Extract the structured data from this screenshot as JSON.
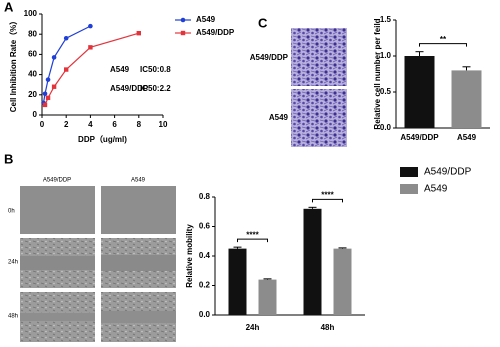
{
  "chart_data": [
    {
      "type": "line",
      "panel": "A",
      "xlabel": "DDP（ug/ml)",
      "ylabel": "Cell Inhibition Rate（%）",
      "xlim": [
        0,
        10
      ],
      "xticks": [
        0,
        2,
        4,
        6,
        8,
        10
      ],
      "ylim": [
        0,
        100
      ],
      "yticks": [
        0,
        20,
        40,
        60,
        80,
        100
      ],
      "series": [
        {
          "name": "A549",
          "color": "#1f3fd6",
          "marker": "circle",
          "x": [
            0.125,
            0.25,
            0.5,
            1,
            2,
            4
          ],
          "values": [
            12,
            21,
            35,
            57,
            76,
            88
          ]
        },
        {
          "name": "A549/DDP",
          "color": "#e3343c",
          "marker": "square",
          "x": [
            0.25,
            0.5,
            1,
            2,
            4,
            8
          ],
          "values": [
            10,
            17,
            28,
            45,
            67,
            81
          ]
        }
      ],
      "annotations": [
        "A549",
        "IC50:0.8",
        "A549/DDP",
        "IC50:2.2"
      ]
    },
    {
      "type": "bar",
      "panel": "C",
      "ylabel": "Relative cell number per feild",
      "image_row_labels": [
        "A549/DDP",
        "A549"
      ],
      "categories": [
        "A549/DDP",
        "A549"
      ],
      "values": [
        1.0,
        0.8
      ],
      "errors": [
        0.06,
        0.05
      ],
      "colors": [
        "#111111",
        "#8c8c8c"
      ],
      "ylim": [
        0,
        1.5
      ],
      "yticks": [
        {
          "value": 0,
          "label": "0.0"
        },
        0.5,
        {
          "value": 1,
          "label": "1.0"
        },
        1.5
      ],
      "significance": [
        "**"
      ]
    },
    {
      "type": "bar",
      "panel": "B",
      "ylabel": "Relative mobility",
      "image_col_labels": [
        "A549/DDP",
        "A549"
      ],
      "image_row_labels": [
        "0h",
        "24h",
        "48h"
      ],
      "categories": [
        "24h",
        "48h"
      ],
      "series": [
        {
          "name": "A549/DDP",
          "color": "#111111",
          "values": [
            0.45,
            0.72
          ],
          "errors": [
            0.01,
            0.01
          ]
        },
        {
          "name": "A549",
          "color": "#8c8c8c",
          "values": [
            0.24,
            0.45
          ],
          "errors": [
            0.005,
            0.005
          ]
        }
      ],
      "ylim": [
        0,
        0.8
      ],
      "yticks": [
        {
          "value": 0,
          "label": "0.0"
        },
        0.2,
        0.4,
        0.6,
        0.8
      ],
      "significance": [
        "****",
        "****"
      ]
    }
  ]
}
